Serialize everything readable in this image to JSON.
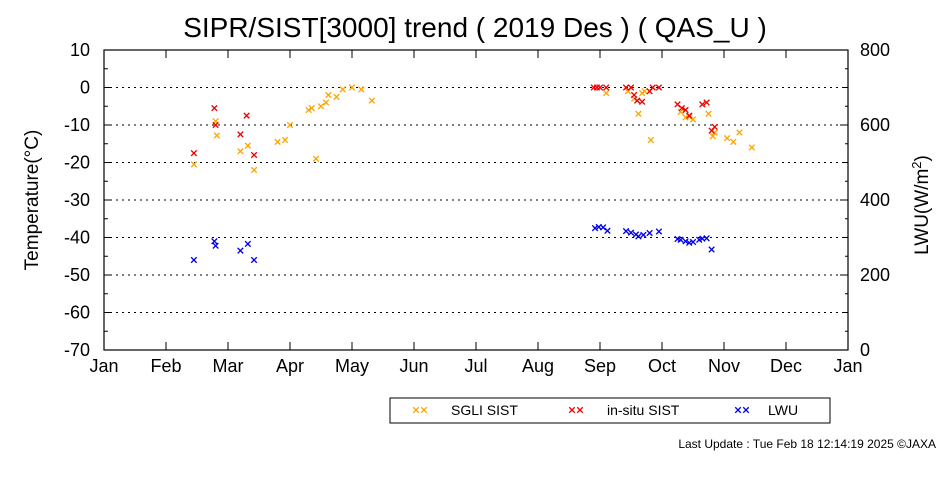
{
  "chart_data": {
    "type": "scatter",
    "title": "SIPR/SIST[3000] trend ( 2019 Des ) ( QAS_U )",
    "ylabel": "Temperature(°C)",
    "y2label_main": "LWU(W/m",
    "y2label_sup": "2",
    "y2label_end": ")",
    "xlim": [
      0,
      12
    ],
    "ylim": [
      -70,
      10
    ],
    "y2lim": [
      0,
      800
    ],
    "y_ticks": [
      10,
      0,
      -10,
      -20,
      -30,
      -40,
      -50,
      -60,
      -70
    ],
    "y2_ticks": [
      800,
      600,
      400,
      200,
      0
    ],
    "x_ticks": [
      "Jan",
      "Feb",
      "Mar",
      "Apr",
      "May",
      "Jun",
      "Jul",
      "Aug",
      "Sep",
      "Oct",
      "Nov",
      "Dec",
      "Jan"
    ],
    "grid": true,
    "legend_position": "bottom-right",
    "series": [
      {
        "name": "SGLI SIST",
        "color": "#ffa500",
        "axis": "left",
        "points": [
          [
            1.45,
            -20.5
          ],
          [
            1.8,
            -9.0
          ],
          [
            1.82,
            -12.8
          ],
          [
            2.2,
            -17.0
          ],
          [
            2.32,
            -15.5
          ],
          [
            2.42,
            -22.0
          ],
          [
            2.8,
            -14.5
          ],
          [
            2.92,
            -14.0
          ],
          [
            3.0,
            -10.0
          ],
          [
            3.3,
            -6.0
          ],
          [
            3.35,
            -5.5
          ],
          [
            3.42,
            -19.0
          ],
          [
            3.5,
            -5.0
          ],
          [
            3.58,
            -4.0
          ],
          [
            3.62,
            -2.0
          ],
          [
            3.75,
            -2.5
          ],
          [
            3.85,
            -0.5
          ],
          [
            4.0,
            0.0
          ],
          [
            4.15,
            -0.5
          ],
          [
            4.32,
            -3.5
          ],
          [
            8.1,
            -1.5
          ],
          [
            8.45,
            -1.0
          ],
          [
            8.55,
            -3.0
          ],
          [
            8.62,
            -7.0
          ],
          [
            8.68,
            -1.5
          ],
          [
            8.72,
            -1.0
          ],
          [
            8.82,
            -14.0
          ],
          [
            9.3,
            -6.5
          ],
          [
            9.38,
            -8.0
          ],
          [
            9.44,
            -7.8
          ],
          [
            9.5,
            -8.5
          ],
          [
            9.75,
            -7.0
          ],
          [
            9.82,
            -13.0
          ],
          [
            9.85,
            -12.0
          ],
          [
            10.05,
            -13.5
          ],
          [
            10.15,
            -14.5
          ],
          [
            10.25,
            -12.0
          ],
          [
            10.45,
            -16.0
          ]
        ]
      },
      {
        "name": "in-situ SIST",
        "color": "#ee0000",
        "axis": "left",
        "points": [
          [
            1.45,
            -17.5
          ],
          [
            1.78,
            -5.5
          ],
          [
            1.8,
            -10.0
          ],
          [
            2.2,
            -12.5
          ],
          [
            2.3,
            -7.5
          ],
          [
            2.42,
            -18.0
          ],
          [
            7.9,
            0.0
          ],
          [
            7.95,
            0.0
          ],
          [
            8.0,
            0.0
          ],
          [
            8.1,
            0.0
          ],
          [
            8.42,
            0.0
          ],
          [
            8.5,
            0.0
          ],
          [
            8.55,
            -2.0
          ],
          [
            8.6,
            -3.5
          ],
          [
            8.68,
            -3.8
          ],
          [
            8.8,
            -1.0
          ],
          [
            8.85,
            0.0
          ],
          [
            8.95,
            0.0
          ],
          [
            9.25,
            -4.5
          ],
          [
            9.32,
            -5.5
          ],
          [
            9.38,
            -6.0
          ],
          [
            9.44,
            -7.5
          ],
          [
            9.65,
            -4.5
          ],
          [
            9.72,
            -4.0
          ],
          [
            9.8,
            -11.5
          ],
          [
            9.85,
            -10.5
          ]
        ]
      },
      {
        "name": "LWU",
        "color": "#0000ee",
        "axis": "right",
        "points": [
          [
            1.45,
            240
          ],
          [
            1.78,
            290
          ],
          [
            1.8,
            278
          ],
          [
            2.2,
            265
          ],
          [
            2.32,
            283
          ],
          [
            2.42,
            240
          ],
          [
            7.92,
            325
          ],
          [
            7.98,
            328
          ],
          [
            8.05,
            327
          ],
          [
            8.12,
            318
          ],
          [
            8.42,
            317
          ],
          [
            8.5,
            313
          ],
          [
            8.58,
            308
          ],
          [
            8.62,
            303
          ],
          [
            8.7,
            307
          ],
          [
            8.8,
            312
          ],
          [
            8.95,
            316
          ],
          [
            9.25,
            296
          ],
          [
            9.3,
            294
          ],
          [
            9.38,
            290
          ],
          [
            9.44,
            286
          ],
          [
            9.5,
            288
          ],
          [
            9.6,
            294
          ],
          [
            9.65,
            297
          ],
          [
            9.72,
            298
          ],
          [
            9.8,
            268
          ]
        ]
      }
    ]
  },
  "footer": {
    "last_update": "Last Update : Tue Feb 18 12:14:19 2025  ©JAXA"
  }
}
